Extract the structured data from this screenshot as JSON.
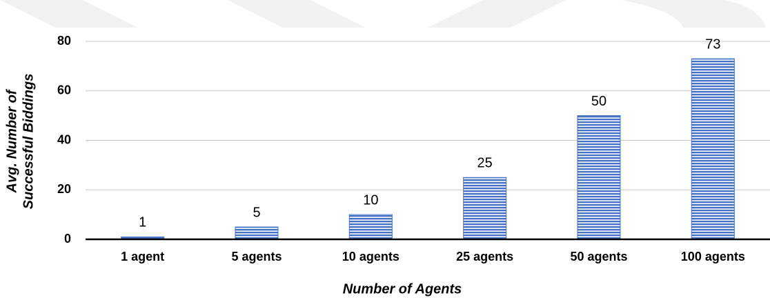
{
  "chart_data": {
    "type": "bar",
    "x_label": "Number of Agents",
    "y_label": [
      "Avg. Number of",
      "Successful Biddings"
    ],
    "categories": [
      "1 agent",
      "5 agents",
      "10 agents",
      "25 agents",
      "50 agents",
      "100 agents"
    ],
    "values": [
      1,
      5,
      10,
      25,
      50,
      73
    ],
    "color": "#4472c4",
    "ylim": [
      0,
      80
    ],
    "yticks": [
      0,
      20,
      40,
      60,
      80
    ],
    "grid": true
  }
}
